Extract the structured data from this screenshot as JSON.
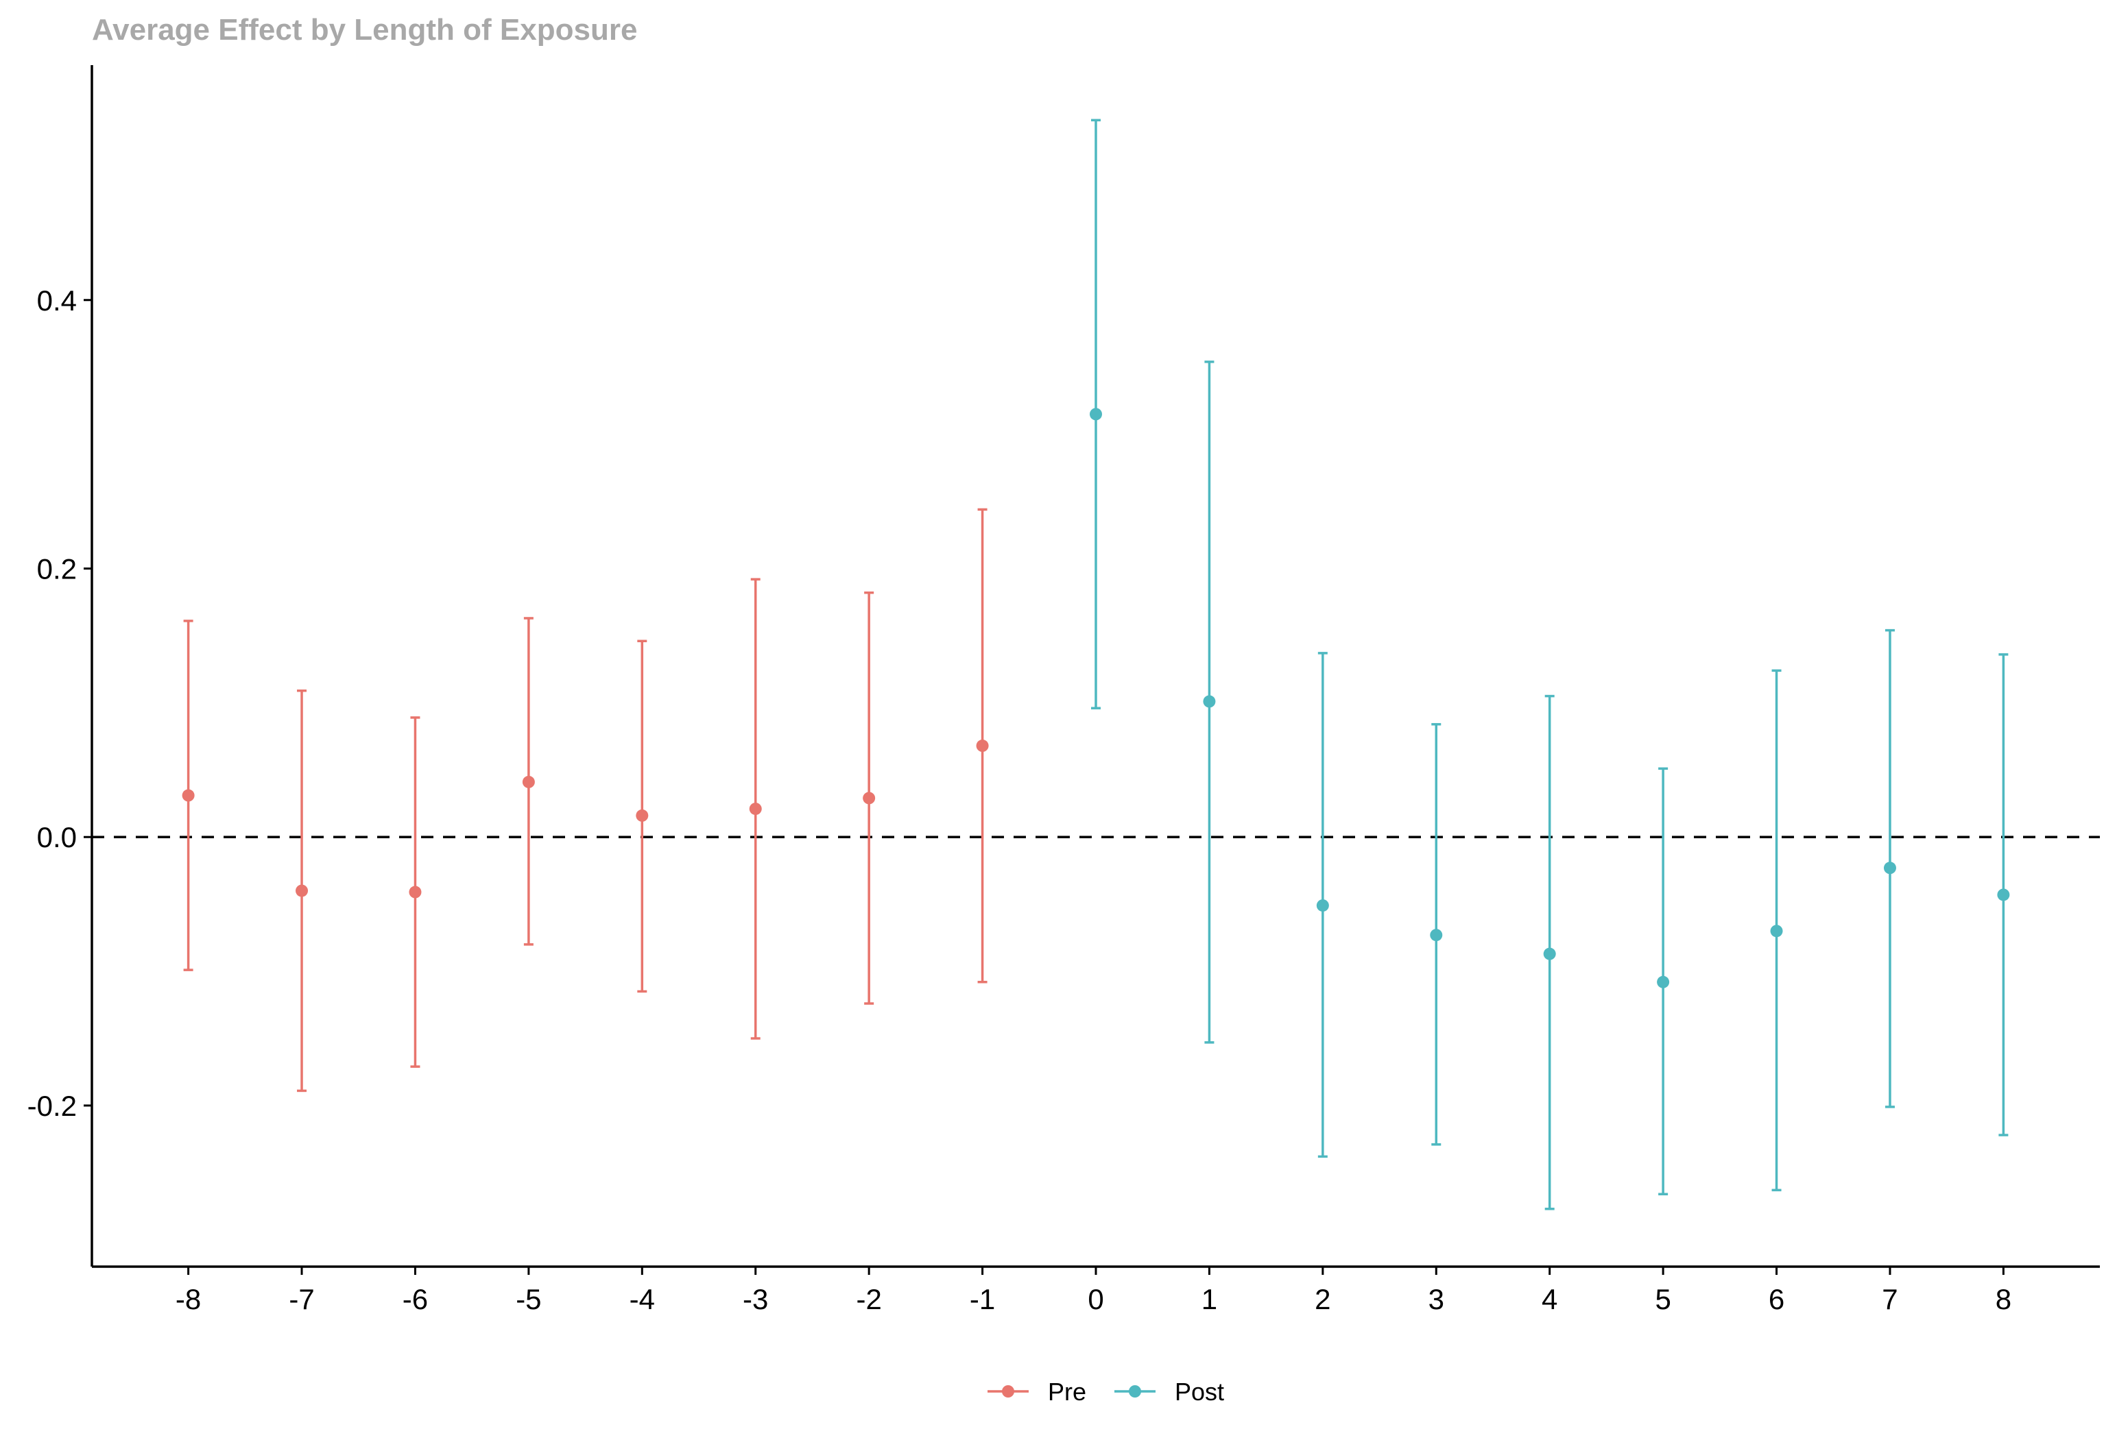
{
  "chart_data": {
    "type": "scatter",
    "title": "Average Effect by Length of Exposure",
    "xlabel": "",
    "ylabel": "",
    "xlim": [
      -8.85,
      8.85
    ],
    "ylim": [
      -0.32,
      0.575
    ],
    "x_ticks": [
      "-8",
      "-7",
      "-6",
      "-5",
      "-4",
      "-3",
      "-2",
      "-1",
      "0",
      "1",
      "2",
      "3",
      "4",
      "5",
      "6",
      "7",
      "8"
    ],
    "y_ticks": [
      "-0.2",
      "0.0",
      "0.2",
      "0.4"
    ],
    "grid": false,
    "reference_line": {
      "y": 0,
      "style": "dashed"
    },
    "legend_position": "bottom",
    "series": [
      {
        "name": "Pre",
        "color": "#E8756D",
        "points": [
          {
            "x": -8,
            "y": 0.031,
            "lower": -0.099,
            "upper": 0.161
          },
          {
            "x": -7,
            "y": -0.04,
            "lower": -0.189,
            "upper": 0.109
          },
          {
            "x": -6,
            "y": -0.041,
            "lower": -0.171,
            "upper": 0.089
          },
          {
            "x": -5,
            "y": 0.041,
            "lower": -0.08,
            "upper": 0.163
          },
          {
            "x": -4,
            "y": 0.016,
            "lower": -0.115,
            "upper": 0.146
          },
          {
            "x": -3,
            "y": 0.021,
            "lower": -0.15,
            "upper": 0.192
          },
          {
            "x": -2,
            "y": 0.029,
            "lower": -0.124,
            "upper": 0.182
          },
          {
            "x": -1,
            "y": 0.068,
            "lower": -0.108,
            "upper": 0.244
          }
        ]
      },
      {
        "name": "Post",
        "color": "#4EB8C0",
        "points": [
          {
            "x": 0,
            "y": 0.315,
            "lower": 0.096,
            "upper": 0.534
          },
          {
            "x": 1,
            "y": 0.101,
            "lower": -0.153,
            "upper": 0.354
          },
          {
            "x": 2,
            "y": -0.051,
            "lower": -0.238,
            "upper": 0.137
          },
          {
            "x": 3,
            "y": -0.073,
            "lower": -0.229,
            "upper": 0.084
          },
          {
            "x": 4,
            "y": -0.087,
            "lower": -0.277,
            "upper": 0.105
          },
          {
            "x": 5,
            "y": -0.108,
            "lower": -0.266,
            "upper": 0.051
          },
          {
            "x": 6,
            "y": -0.07,
            "lower": -0.263,
            "upper": 0.124
          },
          {
            "x": 7,
            "y": -0.023,
            "lower": -0.201,
            "upper": 0.154
          },
          {
            "x": 8,
            "y": -0.043,
            "lower": -0.222,
            "upper": 0.136
          }
        ]
      }
    ]
  },
  "colors": {
    "title": "#A8A8A8",
    "axis": "#000000",
    "reference_line": "#000000"
  }
}
